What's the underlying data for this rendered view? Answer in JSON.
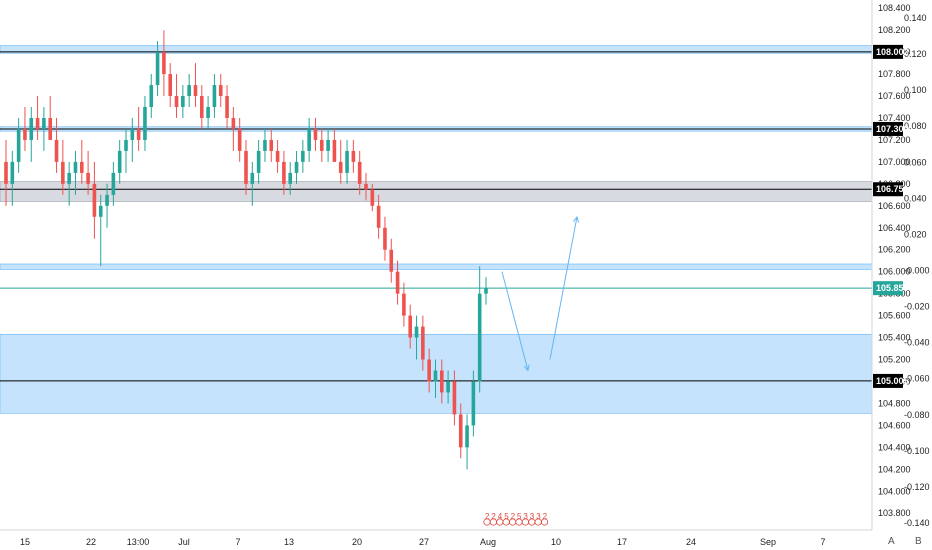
{
  "chart_data": {
    "type": "candlestick",
    "price_axis": {
      "range": [
        103.72,
        108.42
      ],
      "tick_labels": [
        "103.800",
        "104.000",
        "104.200",
        "104.400",
        "104.600",
        "104.800",
        "105.000",
        "105.200",
        "105.400",
        "105.600",
        "105.800",
        "106.000",
        "106.200",
        "106.400",
        "106.600",
        "106.800",
        "107.000",
        "107.200",
        "107.400",
        "107.600",
        "107.800",
        "108.000",
        "108.200",
        "108.400"
      ]
    },
    "secondary_axis": {
      "tick_labels": [
        "0.140",
        "0.120",
        "0.100",
        "0.080",
        "0.060",
        "0.040",
        "0.020",
        "-0.000",
        "-0.020",
        "-0.040",
        "-0.060",
        "-0.080",
        "-0.100",
        "-0.120",
        "-0.140"
      ]
    },
    "time_axis": {
      "tick_labels": [
        "15",
        "22",
        "13:00",
        "Jul",
        "7",
        "13",
        "20",
        "27",
        "Aug",
        "10",
        "17",
        "24",
        "Sep",
        "7"
      ]
    },
    "levels": [
      {
        "label": "108.002",
        "value": 108.002,
        "color": "#000000"
      },
      {
        "label": "107.300",
        "value": 107.3,
        "color": "#000000"
      },
      {
        "label": "106.751",
        "value": 106.751,
        "color": "#000000"
      },
      {
        "label": "105.850",
        "value": 105.85,
        "color": "#26a69a"
      },
      {
        "label": "105.005",
        "value": 105.005,
        "color": "#000000"
      }
    ],
    "zones": [
      {
        "from": 107.99,
        "to": 108.06,
        "color": "#bbdefb"
      },
      {
        "from": 107.28,
        "to": 107.32,
        "color": "#bbdefb"
      },
      {
        "from": 106.64,
        "to": 106.82,
        "color": "#d1d4dc"
      },
      {
        "from": 106.02,
        "to": 106.07,
        "color": "#bbdefb"
      },
      {
        "from": 104.71,
        "to": 105.43,
        "color": "#bbdefb"
      }
    ],
    "candles_ohlc": [
      [
        107.0,
        107.2,
        106.6,
        106.8
      ],
      [
        106.8,
        107.1,
        106.6,
        107.0
      ],
      [
        107.0,
        107.4,
        106.9,
        107.3
      ],
      [
        107.3,
        107.5,
        107.1,
        107.2
      ],
      [
        107.2,
        107.5,
        107.0,
        107.4
      ],
      [
        107.4,
        107.6,
        107.2,
        107.3
      ],
      [
        107.3,
        107.5,
        107.1,
        107.4
      ],
      [
        107.4,
        107.6,
        107.2,
        107.2
      ],
      [
        107.2,
        107.4,
        106.9,
        107.0
      ],
      [
        107.0,
        107.2,
        106.7,
        106.8
      ],
      [
        106.8,
        107.0,
        106.6,
        106.9
      ],
      [
        106.9,
        107.1,
        106.7,
        107.0
      ],
      [
        107.0,
        107.2,
        106.8,
        106.9
      ],
      [
        106.9,
        107.1,
        106.7,
        106.8
      ],
      [
        106.8,
        107.0,
        106.3,
        106.5
      ],
      [
        106.5,
        106.7,
        106.05,
        106.6
      ],
      [
        106.6,
        106.8,
        106.4,
        106.7
      ],
      [
        106.7,
        107.0,
        106.6,
        106.9
      ],
      [
        106.9,
        107.2,
        106.8,
        107.1
      ],
      [
        107.1,
        107.3,
        106.9,
        107.2
      ],
      [
        107.2,
        107.4,
        107.0,
        107.3
      ],
      [
        107.3,
        107.5,
        107.1,
        107.2
      ],
      [
        107.2,
        107.6,
        107.1,
        107.5
      ],
      [
        107.5,
        107.8,
        107.4,
        107.7
      ],
      [
        107.7,
        108.1,
        107.6,
        108.0
      ],
      [
        108.0,
        108.2,
        107.6,
        107.8
      ],
      [
        107.8,
        107.9,
        107.5,
        107.6
      ],
      [
        107.6,
        107.8,
        107.4,
        107.5
      ],
      [
        107.5,
        107.7,
        107.4,
        107.6
      ],
      [
        107.6,
        107.8,
        107.5,
        107.7
      ],
      [
        107.7,
        107.9,
        107.5,
        107.6
      ],
      [
        107.6,
        107.7,
        107.3,
        107.4
      ],
      [
        107.4,
        107.6,
        107.3,
        107.5
      ],
      [
        107.5,
        107.8,
        107.4,
        107.7
      ],
      [
        107.7,
        107.8,
        107.5,
        107.6
      ],
      [
        107.6,
        107.7,
        107.3,
        107.4
      ],
      [
        107.4,
        107.5,
        107.1,
        107.3
      ],
      [
        107.3,
        107.4,
        107.0,
        107.1
      ],
      [
        107.1,
        107.2,
        106.7,
        106.8
      ],
      [
        106.8,
        107.0,
        106.6,
        106.9
      ],
      [
        106.9,
        107.2,
        106.8,
        107.1
      ],
      [
        107.1,
        107.3,
        107.0,
        107.2
      ],
      [
        107.2,
        107.3,
        107.0,
        107.1
      ],
      [
        107.1,
        107.2,
        106.9,
        107.0
      ],
      [
        107.0,
        107.1,
        106.7,
        106.8
      ],
      [
        106.8,
        107.0,
        106.7,
        106.9
      ],
      [
        106.9,
        107.1,
        106.8,
        107.0
      ],
      [
        107.0,
        107.2,
        106.9,
        107.1
      ],
      [
        107.1,
        107.4,
        107.0,
        107.3
      ],
      [
        107.3,
        107.4,
        107.1,
        107.2
      ],
      [
        107.2,
        107.3,
        107.0,
        107.1
      ],
      [
        107.1,
        107.3,
        107.0,
        107.2
      ],
      [
        107.2,
        107.3,
        107.0,
        107.0
      ],
      [
        107.0,
        107.2,
        106.8,
        106.9
      ],
      [
        106.9,
        107.2,
        106.8,
        107.1
      ],
      [
        107.1,
        107.2,
        106.9,
        107.0
      ],
      [
        107.0,
        107.1,
        106.7,
        106.8
      ],
      [
        106.8,
        106.9,
        106.65,
        106.75
      ],
      [
        106.75,
        106.8,
        106.55,
        106.6
      ],
      [
        106.6,
        106.7,
        106.3,
        106.4
      ],
      [
        106.4,
        106.5,
        106.1,
        106.2
      ],
      [
        106.2,
        106.3,
        105.9,
        106.0
      ],
      [
        106.0,
        106.1,
        105.7,
        105.8
      ],
      [
        105.8,
        105.9,
        105.5,
        105.6
      ],
      [
        105.6,
        105.7,
        105.3,
        105.4
      ],
      [
        105.4,
        105.6,
        105.2,
        105.5
      ],
      [
        105.5,
        105.6,
        105.1,
        105.2
      ],
      [
        105.2,
        105.3,
        104.9,
        105.0
      ],
      [
        105.0,
        105.2,
        104.85,
        105.1
      ],
      [
        105.1,
        105.2,
        104.8,
        104.9
      ],
      [
        104.9,
        105.1,
        104.8,
        105.0
      ],
      [
        105.0,
        105.1,
        104.6,
        104.7
      ],
      [
        104.7,
        104.8,
        104.3,
        104.4
      ],
      [
        104.4,
        104.7,
        104.2,
        104.6
      ],
      [
        104.6,
        105.1,
        104.5,
        105.0
      ],
      [
        105.0,
        106.05,
        104.9,
        105.8
      ],
      [
        105.8,
        105.95,
        105.7,
        105.85
      ]
    ]
  },
  "projection_arrows": [
    {
      "from": 106.0,
      "to": 105.1
    },
    {
      "from": 105.2,
      "to": 106.5
    }
  ],
  "event_markers": [
    "2",
    "2",
    "4",
    "5",
    "2",
    "5",
    "3",
    "3",
    "3",
    "2"
  ],
  "corner_buttons": [
    "A",
    "B"
  ],
  "colors": {
    "up": "#26a69a",
    "down": "#ef5350",
    "arrow": "#64b5f6",
    "axis_bg": "#ffffff"
  }
}
